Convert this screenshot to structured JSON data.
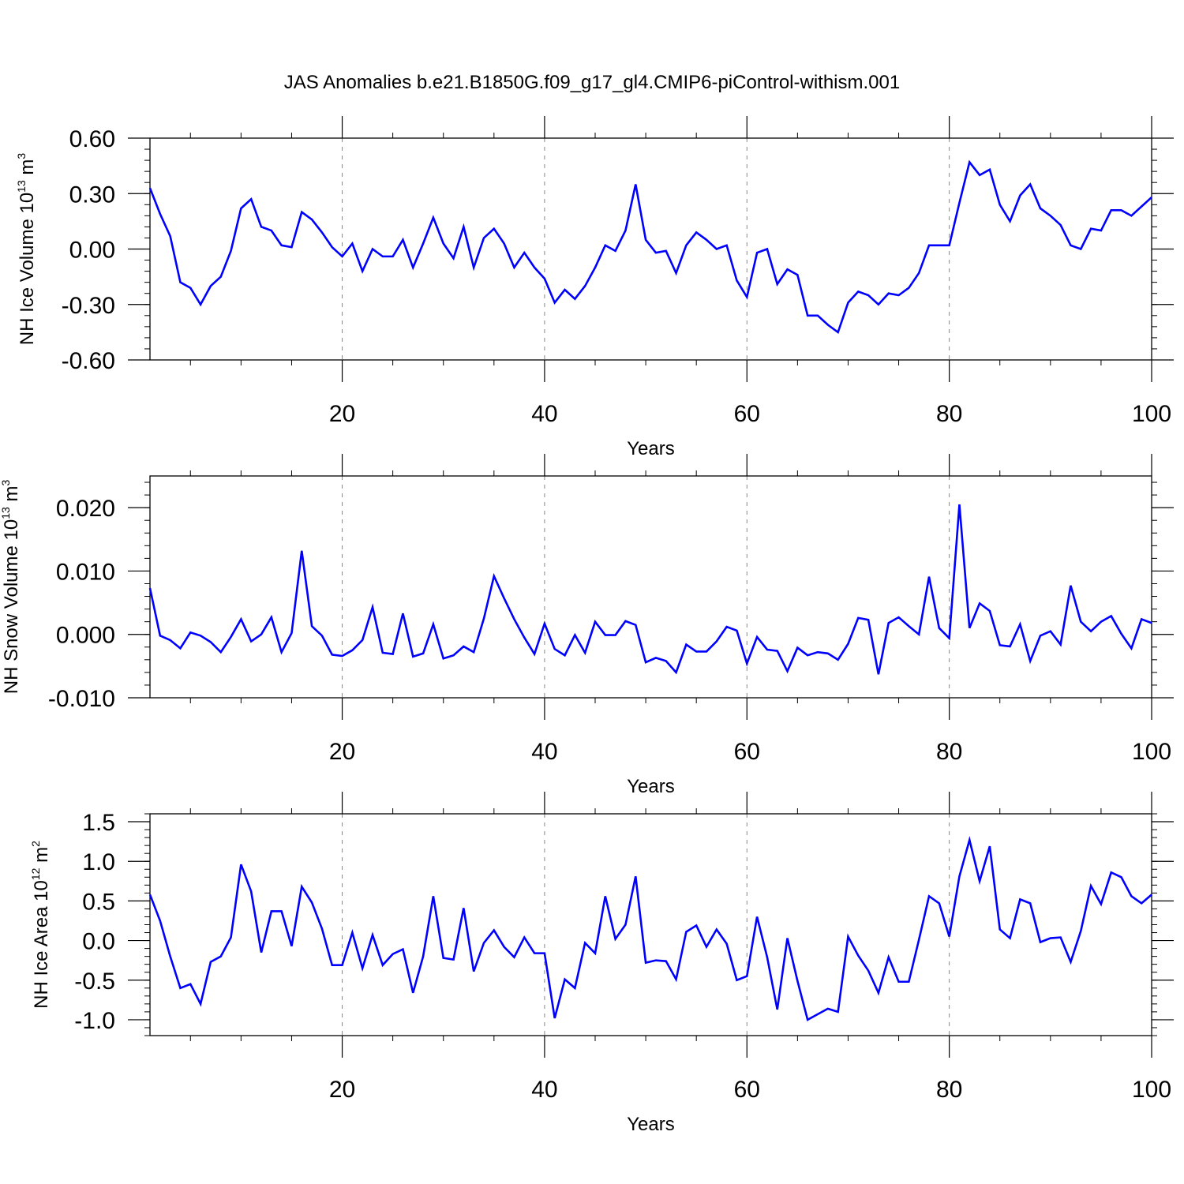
{
  "title": "JAS Anomalies b.e21.B1850G.f09_g17_gl4.CMIP6-piControl-withism.001",
  "chart_data": [
    {
      "type": "line",
      "xlabel": "Years",
      "ylabel": "NH Ice Volume 10",
      "ylabel_sup": "13",
      "ylabel_unit": " m",
      "ylabel_unit_sup": "3",
      "xlim": [
        1,
        100
      ],
      "ylim": [
        -0.6,
        0.6
      ],
      "xticks": [
        20,
        40,
        60,
        80,
        100
      ],
      "xtick_labels": [
        "20",
        "40",
        "60",
        "80",
        "100"
      ],
      "yticks": [
        -0.6,
        -0.3,
        0.0,
        0.3,
        0.6
      ],
      "ytick_labels": [
        "-0.60",
        "-0.30",
        "0.00",
        "0.30",
        "0.60"
      ],
      "grid": "vertical dashed at major x ticks",
      "line_color": "#0000ff",
      "x_start": 1,
      "values": [
        0.33,
        0.19,
        0.07,
        -0.18,
        -0.21,
        -0.3,
        -0.2,
        -0.15,
        -0.01,
        0.22,
        0.27,
        0.12,
        0.1,
        0.02,
        0.01,
        0.2,
        0.16,
        0.09,
        0.01,
        -0.04,
        0.03,
        -0.12,
        0.0,
        -0.04,
        -0.04,
        0.05,
        -0.1,
        0.03,
        0.17,
        0.03,
        -0.05,
        0.12,
        -0.1,
        0.06,
        0.11,
        0.03,
        -0.1,
        -0.02,
        -0.1,
        -0.16,
        -0.29,
        -0.22,
        -0.27,
        -0.2,
        -0.1,
        0.02,
        -0.01,
        0.1,
        0.35,
        0.05,
        -0.02,
        -0.01,
        -0.13,
        0.02,
        0.09,
        0.05,
        0.0,
        0.02,
        -0.17,
        -0.26,
        -0.02,
        0.0,
        -0.19,
        -0.11,
        -0.14,
        -0.36,
        -0.36,
        -0.41,
        -0.45,
        -0.29,
        -0.23,
        -0.25,
        -0.3,
        -0.24,
        -0.25,
        -0.21,
        -0.13,
        0.02,
        0.02,
        0.02,
        0.25,
        0.47,
        0.4,
        0.43,
        0.24,
        0.15,
        0.29,
        0.35,
        0.22,
        0.18,
        0.13,
        0.02,
        0.0,
        0.11,
        0.1,
        0.21,
        0.21,
        0.18,
        0.23,
        0.28
      ]
    },
    {
      "type": "line",
      "xlabel": "Years",
      "ylabel": "NH Snow Volume 10",
      "ylabel_sup": "13",
      "ylabel_unit": " m",
      "ylabel_unit_sup": "3",
      "xlim": [
        1,
        100
      ],
      "ylim": [
        -0.01,
        0.025
      ],
      "xticks": [
        20,
        40,
        60,
        80,
        100
      ],
      "xtick_labels": [
        "20",
        "40",
        "60",
        "80",
        "100"
      ],
      "yticks": [
        -0.01,
        0.0,
        0.01,
        0.02
      ],
      "ytick_labels": [
        "-0.010",
        "0.000",
        "0.010",
        "0.020"
      ],
      "grid": "vertical dashed at major x ticks",
      "line_color": "#0000ff",
      "x_start": 1,
      "values": [
        0.0073,
        -0.0002,
        -0.0009,
        -0.0022,
        0.0003,
        -0.0002,
        -0.0012,
        -0.0028,
        -0.0004,
        0.0024,
        -0.0011,
        0.0,
        0.0027,
        -0.0028,
        0.0002,
        0.0132,
        0.0013,
        -0.0002,
        -0.0032,
        -0.0034,
        -0.0025,
        -0.0009,
        0.0043,
        -0.0029,
        -0.0031,
        0.0033,
        -0.0035,
        -0.003,
        0.0016,
        -0.0038,
        -0.0033,
        -0.0019,
        -0.0028,
        0.0025,
        0.0092,
        0.0057,
        0.0024,
        -0.0005,
        -0.0031,
        0.0017,
        -0.0023,
        -0.0033,
        -0.0001,
        -0.0029,
        0.002,
        -0.0001,
        -0.0001,
        0.0021,
        0.0015,
        -0.0044,
        -0.0037,
        -0.0042,
        -0.006,
        -0.0016,
        -0.0027,
        -0.0027,
        -0.0011,
        0.0012,
        0.0006,
        -0.0046,
        -0.0004,
        -0.0024,
        -0.0026,
        -0.0058,
        -0.0021,
        -0.0033,
        -0.0028,
        -0.003,
        -0.004,
        -0.0015,
        0.0026,
        0.0023,
        -0.0063,
        0.0018,
        0.0027,
        0.0013,
        0.0,
        0.0091,
        0.001,
        -0.0006,
        0.0205,
        0.001,
        0.0049,
        0.0037,
        -0.0017,
        -0.0019,
        0.0016,
        -0.0042,
        -0.0002,
        0.0005,
        -0.0016,
        0.0077,
        0.002,
        0.0005,
        0.002,
        0.0029,
        0.0001,
        -0.0022,
        0.0024,
        0.0018
      ]
    },
    {
      "type": "line",
      "xlabel": "Years",
      "ylabel": "NH Ice Area 10",
      "ylabel_sup": "12",
      "ylabel_unit": " m",
      "ylabel_unit_sup": "2",
      "xlim": [
        1,
        100
      ],
      "ylim": [
        -1.2,
        1.6
      ],
      "xticks": [
        20,
        40,
        60,
        80,
        100
      ],
      "xtick_labels": [
        "20",
        "40",
        "60",
        "80",
        "100"
      ],
      "yticks": [
        -1.0,
        -0.5,
        0.0,
        0.5,
        1.0,
        1.5
      ],
      "ytick_labels": [
        "-1.0",
        "-0.5",
        "0.0",
        "0.5",
        "1.0",
        "1.5"
      ],
      "grid": "vertical dashed at major x ticks",
      "line_color": "#0000ff",
      "x_start": 1,
      "values": [
        0.58,
        0.25,
        -0.2,
        -0.6,
        -0.55,
        -0.8,
        -0.27,
        -0.2,
        0.04,
        0.96,
        0.62,
        -0.15,
        0.37,
        0.37,
        -0.07,
        0.68,
        0.48,
        0.15,
        -0.31,
        -0.31,
        0.1,
        -0.35,
        0.07,
        -0.31,
        -0.17,
        -0.11,
        -0.66,
        -0.2,
        0.56,
        -0.22,
        -0.24,
        0.41,
        -0.39,
        -0.03,
        0.13,
        -0.08,
        -0.21,
        0.04,
        -0.16,
        -0.16,
        -0.98,
        -0.49,
        -0.6,
        -0.03,
        -0.16,
        0.56,
        0.02,
        0.2,
        0.81,
        -0.28,
        -0.25,
        -0.26,
        -0.49,
        0.11,
        0.19,
        -0.08,
        0.14,
        -0.04,
        -0.5,
        -0.45,
        0.3,
        -0.21,
        -0.87,
        0.03,
        -0.51,
        -1.0,
        -0.93,
        -0.86,
        -0.9,
        0.05,
        -0.19,
        -0.38,
        -0.66,
        -0.21,
        -0.52,
        -0.52,
        0.01,
        0.56,
        0.47,
        0.05,
        0.81,
        1.27,
        0.75,
        1.19,
        0.14,
        0.03,
        0.52,
        0.47,
        -0.02,
        0.03,
        0.04,
        -0.27,
        0.12,
        0.69,
        0.46,
        0.86,
        0.8,
        0.56,
        0.47,
        0.58
      ]
    }
  ]
}
